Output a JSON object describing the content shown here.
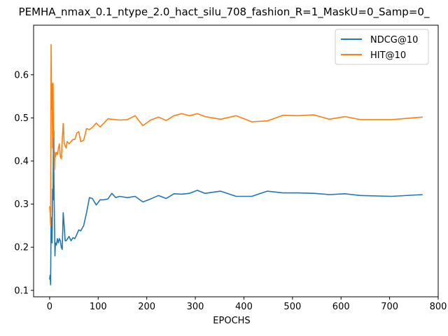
{
  "chart_data": {
    "type": "line",
    "title": "PEMHA_nmax_0.1_ntype_2.0_hact_silu_708_fashion_R=1_MaskU=0_Samp=0_",
    "xlabel": "EPOCHS",
    "ylabel": "",
    "xlim": [
      -33,
      800
    ],
    "ylim": [
      0.085,
      0.715
    ],
    "xticks": [
      0,
      100,
      200,
      300,
      400,
      500,
      600,
      700,
      800
    ],
    "yticks": [
      0.1,
      0.2,
      0.3,
      0.4,
      0.5,
      0.6
    ],
    "xtick_labels": [
      "0",
      "100",
      "200",
      "300",
      "400",
      "500",
      "600",
      "700",
      "800"
    ],
    "ytick_labels": [
      "0.1",
      "0.2",
      "0.3",
      "0.4",
      "0.5",
      "0.6"
    ],
    "grid": false,
    "legend_position": "top-right",
    "series": [
      {
        "name": "NDCG@10",
        "color": "#1f77b4",
        "x": [
          0,
          1,
          2,
          3,
          4,
          5,
          6,
          7,
          8,
          9,
          10,
          11,
          12,
          14,
          16,
          18,
          20,
          22,
          24,
          26,
          28,
          30,
          32,
          34,
          36,
          40,
          44,
          48,
          52,
          56,
          60,
          64,
          70,
          76,
          82,
          88,
          96,
          104,
          112,
          120,
          128,
          136,
          144,
          160,
          176,
          192,
          208,
          224,
          240,
          256,
          272,
          288,
          304,
          320,
          352,
          384,
          416,
          448,
          480,
          512,
          544,
          576,
          608,
          640,
          704,
          768
        ],
        "y": [
          0.125,
          0.135,
          0.113,
          0.27,
          0.215,
          0.21,
          0.335,
          0.31,
          0.465,
          0.35,
          0.26,
          0.18,
          0.21,
          0.205,
          0.22,
          0.21,
          0.22,
          0.215,
          0.2,
          0.195,
          0.28,
          0.25,
          0.215,
          0.215,
          0.218,
          0.225,
          0.215,
          0.222,
          0.22,
          0.23,
          0.24,
          0.238,
          0.25,
          0.28,
          0.315,
          0.313,
          0.298,
          0.31,
          0.31,
          0.312,
          0.325,
          0.315,
          0.318,
          0.315,
          0.318,
          0.305,
          0.312,
          0.32,
          0.313,
          0.324,
          0.323,
          0.325,
          0.332,
          0.325,
          0.33,
          0.318,
          0.318,
          0.33,
          0.326,
          0.326,
          0.325,
          0.322,
          0.324,
          0.32,
          0.318,
          0.322
        ]
      },
      {
        "name": "HIT@10",
        "color": "#ff7f0e",
        "x": [
          0,
          1,
          2,
          3,
          4,
          5,
          6,
          7,
          8,
          9,
          10,
          11,
          12,
          14,
          16,
          18,
          20,
          22,
          24,
          26,
          28,
          30,
          32,
          34,
          36,
          40,
          44,
          48,
          52,
          56,
          60,
          64,
          70,
          76,
          82,
          88,
          96,
          104,
          112,
          120,
          128,
          136,
          144,
          160,
          176,
          192,
          208,
          224,
          240,
          256,
          272,
          288,
          304,
          320,
          352,
          384,
          416,
          448,
          480,
          512,
          544,
          576,
          608,
          640,
          704,
          768
        ],
        "y": [
          0.295,
          0.28,
          0.25,
          0.67,
          0.52,
          0.58,
          0.43,
          0.58,
          0.455,
          0.47,
          0.38,
          0.42,
          0.41,
          0.42,
          0.415,
          0.43,
          0.44,
          0.41,
          0.405,
          0.45,
          0.487,
          0.44,
          0.435,
          0.43,
          0.445,
          0.44,
          0.445,
          0.45,
          0.45,
          0.465,
          0.468,
          0.445,
          0.448,
          0.475,
          0.473,
          0.478,
          0.488,
          0.479,
          0.488,
          0.498,
          0.497,
          0.496,
          0.495,
          0.496,
          0.505,
          0.482,
          0.495,
          0.502,
          0.494,
          0.505,
          0.51,
          0.505,
          0.51,
          0.503,
          0.497,
          0.505,
          0.491,
          0.493,
          0.506,
          0.505,
          0.507,
          0.497,
          0.503,
          0.496,
          0.496,
          0.502
        ]
      }
    ]
  }
}
